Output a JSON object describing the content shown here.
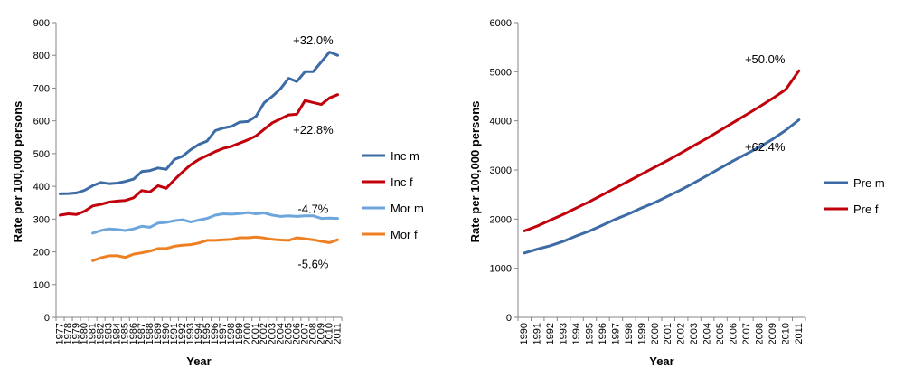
{
  "chart_data": [
    {
      "type": "line",
      "xlabel": "Year",
      "ylabel": "Rate per 100,000 persons",
      "ylim": [
        0,
        900
      ],
      "ytick_step": 100,
      "grid": false,
      "legend": "right",
      "x": [
        1977,
        1978,
        1979,
        1980,
        1981,
        1982,
        1983,
        1984,
        1985,
        1986,
        1987,
        1988,
        1989,
        1990,
        1991,
        1992,
        1993,
        1994,
        1995,
        1996,
        1997,
        1998,
        1999,
        2000,
        2001,
        2002,
        2003,
        2004,
        2005,
        2006,
        2007,
        2008,
        2009,
        2010,
        2011
      ],
      "series": [
        {
          "name": "Inc m",
          "color": "#3d6ba5",
          "values": [
            377,
            378,
            380,
            388,
            402,
            412,
            408,
            410,
            415,
            422,
            445,
            448,
            456,
            452,
            482,
            492,
            512,
            528,
            538,
            570,
            578,
            583,
            596,
            598,
            614,
            655,
            675,
            698,
            730,
            720,
            750,
            750,
            780,
            810,
            800
          ]
        },
        {
          "name": "Inc f",
          "color": "#c0000b",
          "values": [
            312,
            316,
            314,
            324,
            340,
            345,
            352,
            355,
            357,
            365,
            387,
            383,
            402,
            394,
            420,
            444,
            466,
            482,
            494,
            506,
            516,
            522,
            532,
            542,
            554,
            574,
            594,
            606,
            618,
            620,
            662,
            656,
            650,
            670,
            680
          ]
        },
        {
          "name": "Mor m",
          "color": "#6ea6dc",
          "values": [
            null,
            null,
            null,
            null,
            257,
            265,
            270,
            268,
            265,
            270,
            278,
            275,
            288,
            290,
            295,
            298,
            291,
            297,
            302,
            312,
            316,
            315,
            317,
            320,
            316,
            319,
            312,
            308,
            310,
            308,
            310,
            310,
            302,
            303,
            302
          ]
        },
        {
          "name": "Mor f",
          "color": "#ee8022",
          "values": [
            null,
            null,
            null,
            null,
            173,
            182,
            188,
            188,
            183,
            193,
            197,
            202,
            210,
            210,
            217,
            220,
            222,
            227,
            235,
            235,
            237,
            238,
            243,
            243,
            245,
            242,
            238,
            236,
            235,
            243,
            240,
            237,
            232,
            228,
            237
          ]
        }
      ],
      "annotations": [
        {
          "text": "+32.0%",
          "x": 2008,
          "y": 848
        },
        {
          "text": "+22.8%",
          "x": 2008,
          "y": 574
        },
        {
          "text": "-4.7%",
          "x": 2008,
          "y": 332
        },
        {
          "text": "-5.6%",
          "x": 2008,
          "y": 164
        }
      ]
    },
    {
      "type": "line",
      "xlabel": "Year",
      "ylabel": "Rate per 100,000 persons",
      "ylim": [
        0,
        6000
      ],
      "ytick_step": 1000,
      "grid": false,
      "legend": "right",
      "x": [
        1990,
        1991,
        1992,
        1993,
        1994,
        1995,
        1996,
        1997,
        1998,
        1999,
        2000,
        2001,
        2002,
        2003,
        2004,
        2005,
        2006,
        2007,
        2008,
        2009,
        2010,
        2011
      ],
      "series": [
        {
          "name": "Pre m",
          "color": "#3d6ba5",
          "values": [
            1310,
            1390,
            1460,
            1550,
            1660,
            1760,
            1880,
            2000,
            2110,
            2230,
            2340,
            2470,
            2600,
            2740,
            2890,
            3040,
            3190,
            3330,
            3470,
            3630,
            3810,
            4020
          ]
        },
        {
          "name": "Pre f",
          "color": "#c0000b",
          "values": [
            1760,
            1860,
            1980,
            2100,
            2230,
            2360,
            2500,
            2640,
            2780,
            2920,
            3060,
            3200,
            3350,
            3500,
            3650,
            3810,
            3970,
            4130,
            4290,
            4460,
            4640,
            5020
          ]
        }
      ],
      "annotations": [
        {
          "text": "+50.0%",
          "x": 2008.4,
          "y": 5260
        },
        {
          "text": "+62.4%",
          "x": 2008.4,
          "y": 3480
        }
      ]
    }
  ]
}
